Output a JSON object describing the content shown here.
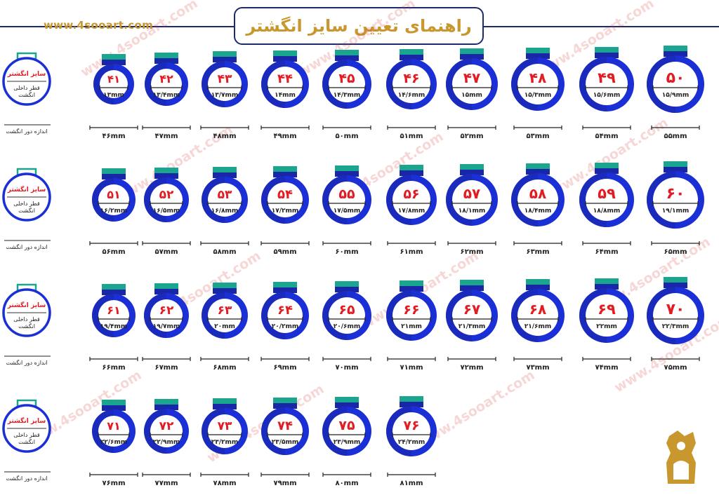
{
  "website": "www.4sooart.com",
  "title": "راهنمای تعیین سایز انگشتر",
  "legend": {
    "size_label": "سایز انگشتر",
    "inner_label_1": "قطر داخلی",
    "inner_label_2": "انگشت",
    "circ_label": "اندازه دور انگشت"
  },
  "watermark_text": "www.4sooart.com",
  "colors": {
    "ring_outer": "#1a2fd6",
    "ring_dark": "#1a26a8",
    "ring_top": "#1aa58e",
    "number": "#e31b23",
    "gold": "#c8982e",
    "navy": "#1d2a6b"
  },
  "rows": [
    [
      {
        "size": "۴۱",
        "diameter": "۱۳mm",
        "circ": "۴۶mm"
      },
      {
        "size": "۴۲",
        "diameter": "۱۳/۴mm",
        "circ": "۴۷mm"
      },
      {
        "size": "۴۳",
        "diameter": "۱۳/۷mm",
        "circ": "۴۸mm"
      },
      {
        "size": "۴۴",
        "diameter": "۱۴mm",
        "circ": "۴۹mm"
      },
      {
        "size": "۴۵",
        "diameter": "۱۴/۳mm",
        "circ": "۵۰mm"
      },
      {
        "size": "۴۶",
        "diameter": "۱۴/۶mm",
        "circ": "۵۱mm"
      },
      {
        "size": "۴۷",
        "diameter": "۱۵mm",
        "circ": "۵۲mm"
      },
      {
        "size": "۴۸",
        "diameter": "۱۵/۳mm",
        "circ": "۵۳mm"
      },
      {
        "size": "۴۹",
        "diameter": "۱۵/۶mm",
        "circ": "۵۴mm"
      },
      {
        "size": "۵۰",
        "diameter": "۱۵/۹mm",
        "circ": "۵۵mm"
      }
    ],
    [
      {
        "size": "۵۱",
        "diameter": "۱۶/۲mm",
        "circ": "۵۶mm"
      },
      {
        "size": "۵۲",
        "diameter": "۱۶/۵mm",
        "circ": "۵۷mm"
      },
      {
        "size": "۵۳",
        "diameter": "۱۶/۸mm",
        "circ": "۵۸mm"
      },
      {
        "size": "۵۴",
        "diameter": "۱۷/۲mm",
        "circ": "۵۹mm"
      },
      {
        "size": "۵۵",
        "diameter": "۱۷/۵mm",
        "circ": "۶۰mm"
      },
      {
        "size": "۵۶",
        "diameter": "۱۷/۸mm",
        "circ": "۶۱mm"
      },
      {
        "size": "۵۷",
        "diameter": "۱۸/۱mm",
        "circ": "۶۲mm"
      },
      {
        "size": "۵۸",
        "diameter": "۱۸/۴mm",
        "circ": "۶۳mm"
      },
      {
        "size": "۵۹",
        "diameter": "۱۸/۸mm",
        "circ": "۶۴mm"
      },
      {
        "size": "۶۰",
        "diameter": "۱۹/۱mm",
        "circ": "۶۵mm"
      }
    ],
    [
      {
        "size": "۶۱",
        "diameter": "۱۹/۴mm",
        "circ": "۶۶mm"
      },
      {
        "size": "۶۲",
        "diameter": "۱۹/۷mm",
        "circ": "۶۷mm"
      },
      {
        "size": "۶۳",
        "diameter": "۲۰mm",
        "circ": "۶۸mm"
      },
      {
        "size": "۶۴",
        "diameter": "۲۰/۲mm",
        "circ": "۶۹mm"
      },
      {
        "size": "۶۵",
        "diameter": "۲۰/۶mm",
        "circ": "۷۰mm"
      },
      {
        "size": "۶۶",
        "diameter": "۲۱mm",
        "circ": "۷۱mm"
      },
      {
        "size": "۶۷",
        "diameter": "۲۱/۳mm",
        "circ": "۷۲mm"
      },
      {
        "size": "۶۸",
        "diameter": "۲۱/۶mm",
        "circ": "۷۳mm"
      },
      {
        "size": "۶۹",
        "diameter": "۲۲mm",
        "circ": "۷۴mm"
      },
      {
        "size": "۷۰",
        "diameter": "۲۲/۳mm",
        "circ": "۷۵mm"
      }
    ],
    [
      {
        "size": "۷۱",
        "diameter": "۲۲/۶mm",
        "circ": "۷۶mm"
      },
      {
        "size": "۷۲",
        "diameter": "۲۲/۹mm",
        "circ": "۷۷mm"
      },
      {
        "size": "۷۳",
        "diameter": "۲۳/۲mm",
        "circ": "۷۸mm"
      },
      {
        "size": "۷۴",
        "diameter": "۲۳/۵mm",
        "circ": "۷۹mm"
      },
      {
        "size": "۷۵",
        "diameter": "۲۳/۹mm",
        "circ": "۸۰mm"
      },
      {
        "size": "۷۶",
        "diameter": "۲۴/۲mm",
        "circ": "۸۱mm"
      }
    ]
  ]
}
